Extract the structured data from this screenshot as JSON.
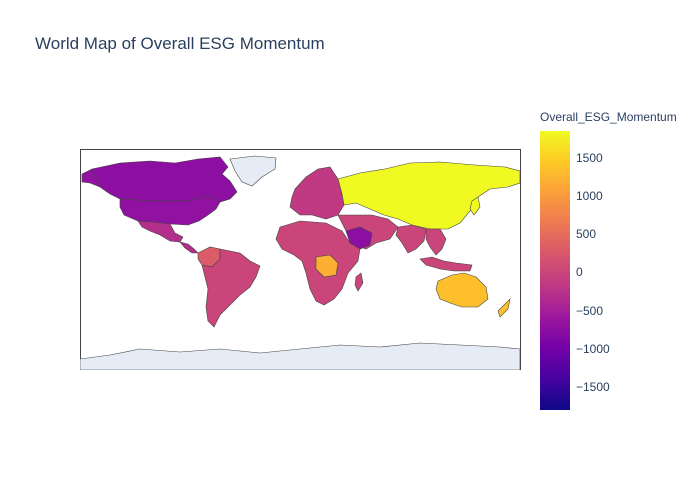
{
  "title": "World Map of Overall ESG Momentum",
  "chart_data": {
    "type": "choropleth",
    "title": "World Map of Overall ESG Momentum",
    "projection": "equirectangular",
    "colorbar": {
      "title": "Overall_ESG_Momentum",
      "colorscale": "plasma",
      "range": [
        -1800,
        1850
      ],
      "ticks": [
        {
          "value": 1500,
          "label": "1500"
        },
        {
          "value": 1000,
          "label": "1000"
        },
        {
          "value": 500,
          "label": "500"
        },
        {
          "value": 0,
          "label": "0"
        },
        {
          "value": -500,
          "label": "−500"
        },
        {
          "value": -1000,
          "label": "−1000"
        },
        {
          "value": -1500,
          "label": "−1500"
        }
      ]
    },
    "colors": {
      "background_land": "#e5ecf6",
      "border": "#444444"
    },
    "regions": [
      {
        "name": "Russia / China / Central Asia",
        "value": 1850
      },
      {
        "name": "Australia",
        "value": 1350
      },
      {
        "name": "Central Africa (DR Congo)",
        "value": 1200
      },
      {
        "name": "Colombia",
        "value": 300
      },
      {
        "name": "United States",
        "value": -700
      },
      {
        "name": "Canada",
        "value": -750
      },
      {
        "name": "Mexico",
        "value": -300
      },
      {
        "name": "Saudi Arabia",
        "value": -750
      },
      {
        "name": "Europe",
        "value": -150
      },
      {
        "name": "South America",
        "value": 0
      },
      {
        "name": "Africa",
        "value": 0
      },
      {
        "name": "South Asia",
        "value": 0
      },
      {
        "name": "Middle East",
        "value": 0
      },
      {
        "name": "Southeast Asia",
        "value": 0
      }
    ]
  }
}
